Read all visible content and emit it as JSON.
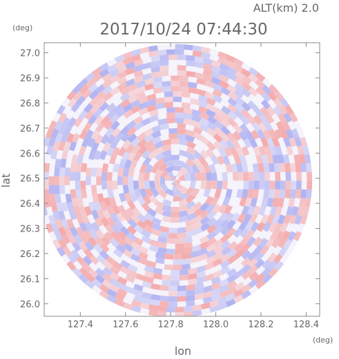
{
  "header": {
    "altitude_label": "ALT(km) 2.0",
    "timestamp": "2017/10/24 07:44:30"
  },
  "colors": {
    "positive": "#f4a3a3",
    "negative": "#a9acf0",
    "axis": "#888888",
    "text": "#666666"
  },
  "chart_data": {
    "type": "heatmap",
    "title": "2017/10/24 07:44:30",
    "subtitle": "ALT(km) 2.0",
    "xlabel": "lon",
    "ylabel": "lat",
    "x_unit": "(deg)",
    "y_unit": "(deg)",
    "xlim": [
      127.24,
      128.46
    ],
    "ylim": [
      25.95,
      27.04
    ],
    "x_ticks": [
      127.4,
      127.6,
      127.8,
      128.0,
      128.2,
      128.4
    ],
    "x_tick_labels": [
      "127.4",
      "127.6",
      "127.8",
      "128.0",
      "128.2",
      "128.4"
    ],
    "y_ticks": [
      26.0,
      26.1,
      26.2,
      26.3,
      26.4,
      26.5,
      26.6,
      26.7,
      26.8,
      26.9,
      27.0
    ],
    "y_tick_labels": [
      "26.0",
      "26.1",
      "26.2",
      "26.3",
      "26.4",
      "26.5",
      "26.6",
      "26.7",
      "26.8",
      "26.9",
      "27.0"
    ],
    "radar_center": {
      "lon": 127.82,
      "lat": 26.49
    },
    "radar_range_deg_lat": 0.545,
    "value_sign_colors": [
      "positive",
      "negative"
    ],
    "grid": false
  }
}
